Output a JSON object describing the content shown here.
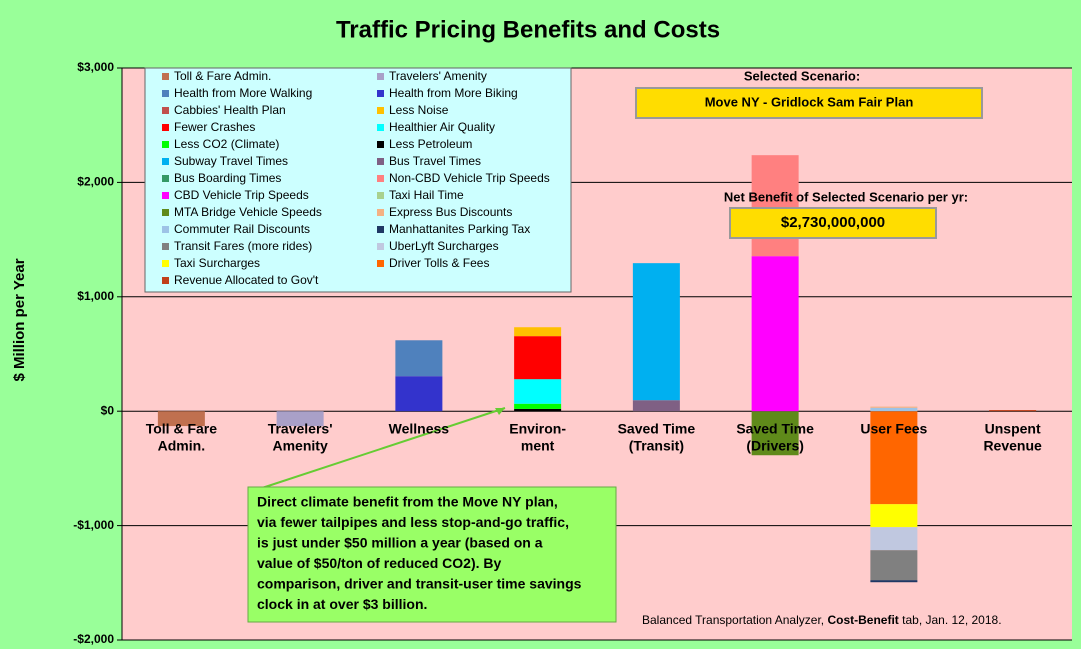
{
  "chart_data": {
    "type": "stacked-bar",
    "title": "Traffic Pricing Benefits and Costs",
    "y_label": "$ Million per Year",
    "categories": [
      [
        "Toll & Fare",
        "Admin."
      ],
      [
        "Travelers'",
        "Amenity"
      ],
      [
        "Wellness"
      ],
      [
        "Environ-",
        "ment"
      ],
      [
        "Saved Time",
        "(Transit)"
      ],
      [
        "Saved Time",
        "(Drivers)"
      ],
      [
        "User Fees"
      ],
      [
        "Unspent",
        "Revenue"
      ]
    ],
    "ylim": [
      -2000,
      3000
    ],
    "yticks": [
      {
        "value": 3000,
        "label": "$3,000"
      },
      {
        "value": 2000,
        "label": "$2,000"
      },
      {
        "value": 1000,
        "label": "$1,000"
      },
      {
        "value": 0,
        "label": "$0"
      },
      {
        "value": -1000,
        "label": "-$1,000"
      },
      {
        "value": -2000,
        "label": "-$2,000"
      }
    ],
    "grid": true,
    "series": [
      {
        "name": "Toll & Fare Admin.",
        "color": "#c0704f",
        "values": [
          -130,
          null,
          null,
          null,
          null,
          null,
          null,
          null
        ]
      },
      {
        "name": "Travelers' Amenity",
        "color": "#a9a0c8",
        "values": [
          null,
          -130,
          null,
          null,
          null,
          null,
          null,
          null
        ]
      },
      {
        "name": "Health from More Walking",
        "color": "#4f81bd",
        "values": [
          null,
          null,
          314,
          null,
          null,
          null,
          null,
          null
        ]
      },
      {
        "name": "Health from More Biking",
        "color": "#3333cc",
        "values": [
          null,
          null,
          306,
          null,
          null,
          null,
          null,
          null
        ]
      },
      {
        "name": "Cabbies' Health Plan",
        "color": "#c0504d",
        "values": [
          null,
          null,
          null,
          null,
          null,
          null,
          null,
          null
        ]
      },
      {
        "name": "Less Noise",
        "color": "#ffc000",
        "values": [
          null,
          null,
          null,
          78,
          null,
          null,
          null,
          null
        ]
      },
      {
        "name": "Fewer Crashes",
        "color": "#ff0000",
        "values": [
          null,
          null,
          null,
          376,
          null,
          null,
          null,
          null
        ]
      },
      {
        "name": "Healthier Air Quality",
        "color": "#00ffff",
        "values": [
          null,
          null,
          null,
          215,
          null,
          null,
          null,
          null
        ]
      },
      {
        "name": "Less CO2 (Climate)",
        "color": "#00ff00",
        "values": [
          null,
          null,
          null,
          45,
          null,
          null,
          null,
          null
        ]
      },
      {
        "name": "Less Petroleum",
        "color": "#000000",
        "values": [
          null,
          null,
          null,
          20,
          null,
          null,
          null,
          null
        ]
      },
      {
        "name": "Subway Travel Times",
        "color": "#00b0f0",
        "values": [
          null,
          null,
          null,
          null,
          1198,
          null,
          null,
          null
        ]
      },
      {
        "name": "Bus Travel Times",
        "color": "#7f6084",
        "values": [
          null,
          null,
          null,
          null,
          96,
          null,
          null,
          null
        ]
      },
      {
        "name": "Bus Boarding Times",
        "color": "#339966",
        "values": [
          null,
          null,
          null,
          null,
          null,
          null,
          null,
          null
        ]
      },
      {
        "name": "Non-CBD Vehicle Trip Speeds",
        "color": "#ff8080",
        "values": [
          null,
          null,
          null,
          null,
          null,
          883,
          null,
          null
        ]
      },
      {
        "name": "CBD Vehicle Trip Speeds",
        "color": "#ff00ff",
        "values": [
          null,
          null,
          null,
          null,
          null,
          1355,
          null,
          null
        ]
      },
      {
        "name": "Taxi Hail Time",
        "color": "#a9d18e",
        "values": [
          null,
          null,
          null,
          null,
          null,
          null,
          null,
          null
        ]
      },
      {
        "name": "MTA Bridge Vehicle Speeds",
        "color": "#5f8a1a",
        "values": [
          null,
          null,
          null,
          null,
          null,
          -385,
          null,
          null
        ]
      },
      {
        "name": "Express Bus Discounts",
        "color": "#f4b183",
        "values": [
          null,
          null,
          null,
          null,
          null,
          null,
          10,
          null
        ]
      },
      {
        "name": "Commuter Rail Discounts",
        "color": "#9dc3e6",
        "values": [
          null,
          null,
          null,
          null,
          null,
          null,
          30,
          null
        ]
      },
      {
        "name": "Manhattanites Parking Tax",
        "color": "#1f3864",
        "values": [
          null,
          null,
          null,
          null,
          null,
          null,
          -18,
          null
        ]
      },
      {
        "name": "Transit Fares (more rides)",
        "color": "#808080",
        "values": [
          null,
          null,
          null,
          null,
          null,
          null,
          -262,
          null
        ]
      },
      {
        "name": "UberLyft Surcharges",
        "color": "#c0c8e0",
        "values": [
          null,
          null,
          null,
          null,
          null,
          null,
          -201,
          null
        ]
      },
      {
        "name": "Taxi Surcharges",
        "color": "#ffff00",
        "values": [
          null,
          null,
          null,
          null,
          null,
          null,
          -201,
          null
        ]
      },
      {
        "name": "Driver Tolls & Fees",
        "color": "#ff6600",
        "values": [
          null,
          null,
          null,
          null,
          null,
          null,
          -813,
          null
        ]
      },
      {
        "name": "Revenue Allocated to Gov't",
        "color": "#c0401a",
        "values": [
          null,
          null,
          null,
          null,
          null,
          null,
          null,
          10
        ]
      }
    ],
    "scenario_label": "Selected Scenario:",
    "scenario": "Move NY - Gridlock Sam Fair Plan",
    "net_benefit_label": "Net Benefit of Selected Scenario per yr:",
    "net_benefit": "$2,730,000,000",
    "annotation": [
      "Direct climate benefit from the Move NY plan,",
      "via fewer tailpipes and less stop-and-go traffic,",
      "is just under $50 million a year (based on a",
      "value of $50/ton of reduced CO2). By",
      "comparison, driver and transit-user time savings",
      "clock in at over $3 billion."
    ],
    "source": [
      "Balanced Transportation Analyzer, ",
      "Cost-Benefit",
      " tab, Jan. 12, 2018."
    ]
  }
}
